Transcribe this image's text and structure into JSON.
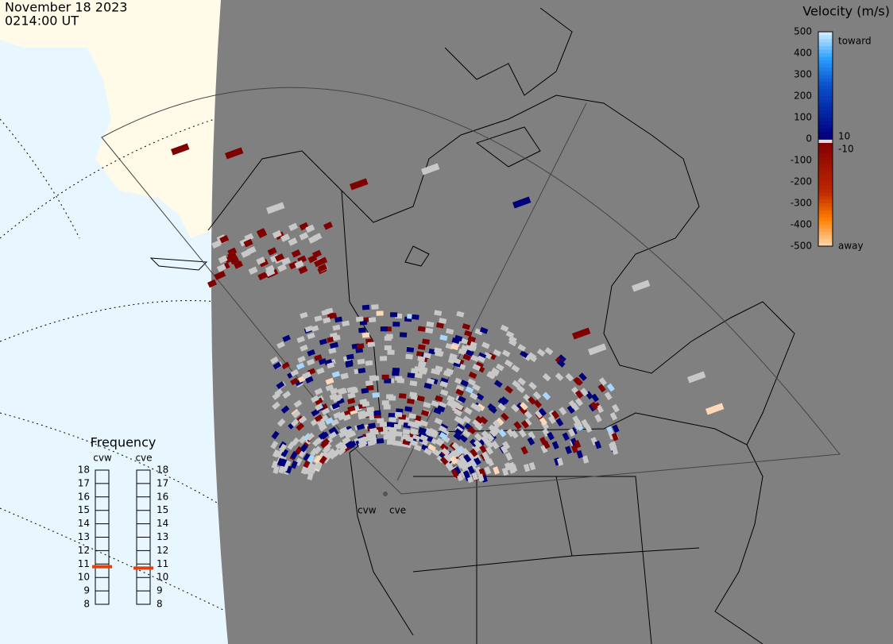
{
  "header": {
    "date": "November 18 2023",
    "time": "0214:00 UT"
  },
  "velocity_scale": {
    "title": "Velocity (m/s)",
    "ticks": [
      500,
      400,
      300,
      200,
      100,
      0,
      -100,
      -200,
      -300,
      -400,
      -500
    ],
    "inner_ticks": [
      10,
      -10
    ],
    "toward": "toward",
    "away": "away"
  },
  "frequency": {
    "title": "Frequency",
    "ticks": [
      18,
      17,
      16,
      15,
      14,
      13,
      12,
      11,
      10,
      9,
      8
    ],
    "radars": [
      {
        "name": "cvw",
        "value": 10.8
      },
      {
        "name": "cve",
        "value": 10.7
      }
    ]
  },
  "sites": [
    "cvw",
    "cve"
  ]
}
